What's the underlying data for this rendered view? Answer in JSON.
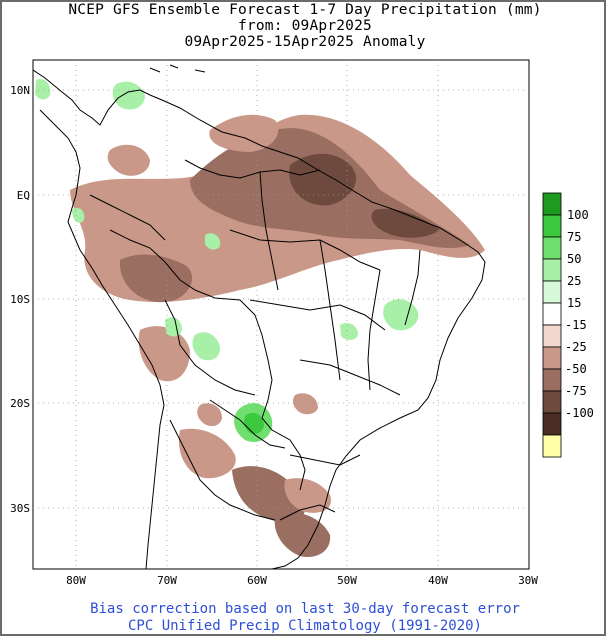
{
  "title": {
    "line1": "NCEP GFS Ensemble Forecast 1-7 Day Precipitation (mm)",
    "line2": "from: 09Apr2025",
    "line3": "09Apr2025-15Apr2025 Anomaly"
  },
  "axes": {
    "lat_labels": [
      {
        "text": "10N",
        "lat": 10
      },
      {
        "text": "EQ",
        "lat": 0
      },
      {
        "text": "10S",
        "lat": -10
      },
      {
        "text": "20S",
        "lat": -20
      },
      {
        "text": "30S",
        "lat": -30
      }
    ],
    "lon_labels": [
      {
        "text": "80W",
        "lon": -80
      },
      {
        "text": "70W",
        "lon": -70
      },
      {
        "text": "60W",
        "lon": -60
      },
      {
        "text": "50W",
        "lon": -50
      },
      {
        "text": "40W",
        "lon": -40
      },
      {
        "text": "30W",
        "lon": -30
      }
    ],
    "lon_range": [
      -85,
      -30
    ],
    "lat_range": [
      -36,
      13
    ],
    "grid": "dotted"
  },
  "legend": {
    "categories": [
      {
        "color": "#1e9a1e"
      },
      {
        "label": "100",
        "color": "#3cc83c"
      },
      {
        "label": "75",
        "color": "#6fe06f"
      },
      {
        "label": "50",
        "color": "#a8f0a8"
      },
      {
        "label": "25",
        "color": "#d8fad8"
      },
      {
        "label": "15",
        "color": "#ffffff"
      },
      {
        "label": "-15",
        "color": "#f2d8d0"
      },
      {
        "label": "-25",
        "color": "#c99888"
      },
      {
        "label": "-50",
        "color": "#9a6e60"
      },
      {
        "label": "-75",
        "color": "#6e4a3e"
      },
      {
        "label": "-100",
        "color": "#4a2e26"
      },
      {
        "color": "#ffffa8"
      }
    ]
  },
  "footer": {
    "line1": "Bias correction based on last 30-day forecast error",
    "line2": "CPC Unified Precip Climatology (1991-2020)"
  },
  "colors": {
    "footer_text": "#2d4fd6",
    "frame": "#6b6b6b"
  }
}
